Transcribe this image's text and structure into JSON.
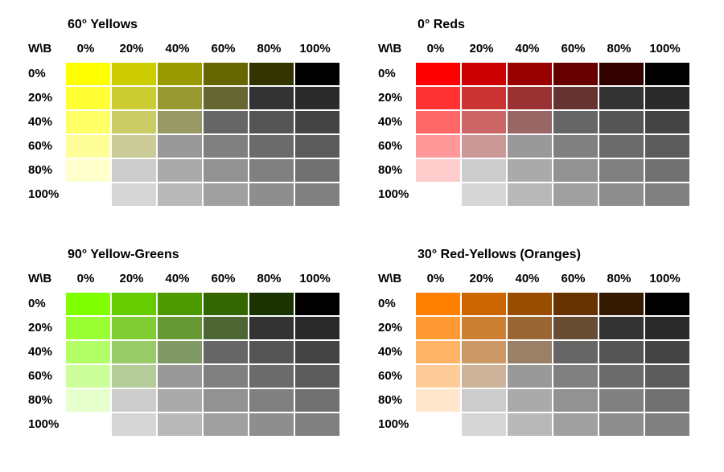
{
  "column_labels": [
    "0%",
    "20%",
    "40%",
    "60%",
    "80%",
    "100%"
  ],
  "row_labels": [
    "0%",
    "20%",
    "40%",
    "60%",
    "80%",
    "100%"
  ],
  "corner_label": "W\\B",
  "panels": [
    {
      "title": "60° Yellows",
      "colors": [
        [
          "#ffff00",
          "#cccc00",
          "#999900",
          "#666600",
          "#333300",
          "#000000"
        ],
        [
          "#ffff33",
          "#cccc33",
          "#999933",
          "#666633",
          "#333333",
          "#2a2a2a"
        ],
        [
          "#ffff66",
          "#cccc66",
          "#999966",
          "#666666",
          "#555555",
          "#444444"
        ],
        [
          "#ffff99",
          "#cccc99",
          "#999999",
          "#808080",
          "#6b6b6b",
          "#5c5c5c"
        ],
        [
          "#ffffcc",
          "#cccccc",
          "#aaaaaa",
          "#929292",
          "#808080",
          "#717171"
        ],
        [
          "#ffffff",
          "#d6d6d6",
          "#b8b8b8",
          "#a0a0a0",
          "#8e8e8e",
          "#808080"
        ]
      ]
    },
    {
      "title": "0° Reds",
      "colors": [
        [
          "#ff0000",
          "#cc0000",
          "#990000",
          "#660000",
          "#330000",
          "#000000"
        ],
        [
          "#ff3333",
          "#cc3333",
          "#993333",
          "#663333",
          "#333333",
          "#2a2a2a"
        ],
        [
          "#ff6666",
          "#cc6666",
          "#996666",
          "#666666",
          "#555555",
          "#444444"
        ],
        [
          "#ff9999",
          "#cc9999",
          "#999999",
          "#808080",
          "#6b6b6b",
          "#5c5c5c"
        ],
        [
          "#ffcccc",
          "#cccccc",
          "#aaaaaa",
          "#929292",
          "#808080",
          "#717171"
        ],
        [
          "#ffffff",
          "#d6d6d6",
          "#b8b8b8",
          "#a0a0a0",
          "#8e8e8e",
          "#808080"
        ]
      ]
    },
    {
      "title": "90° Yellow-Greens",
      "colors": [
        [
          "#80ff00",
          "#66cc00",
          "#4d9900",
          "#336600",
          "#1a3300",
          "#000000"
        ],
        [
          "#99ff33",
          "#80cc33",
          "#669933",
          "#4d6633",
          "#333333",
          "#2a2a2a"
        ],
        [
          "#b3ff66",
          "#99cc66",
          "#809966",
          "#666666",
          "#555555",
          "#444444"
        ],
        [
          "#ccff99",
          "#b3cc99",
          "#999999",
          "#808080",
          "#6b6b6b",
          "#5c5c5c"
        ],
        [
          "#e6ffcc",
          "#cccccc",
          "#aaaaaa",
          "#929292",
          "#808080",
          "#717171"
        ],
        [
          "#ffffff",
          "#d6d6d6",
          "#b8b8b8",
          "#a0a0a0",
          "#8e8e8e",
          "#808080"
        ]
      ]
    },
    {
      "title": "30° Red-Yellows (Oranges)",
      "colors": [
        [
          "#ff8000",
          "#cc6600",
          "#994d00",
          "#663300",
          "#331a00",
          "#000000"
        ],
        [
          "#ff9933",
          "#cc8033",
          "#996633",
          "#664d33",
          "#333333",
          "#2a2a2a"
        ],
        [
          "#ffb366",
          "#cc9966",
          "#998066",
          "#666666",
          "#555555",
          "#444444"
        ],
        [
          "#ffcc99",
          "#ccb399",
          "#999999",
          "#808080",
          "#6b6b6b",
          "#5c5c5c"
        ],
        [
          "#ffe6cc",
          "#cccccc",
          "#aaaaaa",
          "#929292",
          "#808080",
          "#717171"
        ],
        [
          "#ffffff",
          "#d6d6d6",
          "#b8b8b8",
          "#a0a0a0",
          "#8e8e8e",
          "#808080"
        ]
      ]
    }
  ]
}
